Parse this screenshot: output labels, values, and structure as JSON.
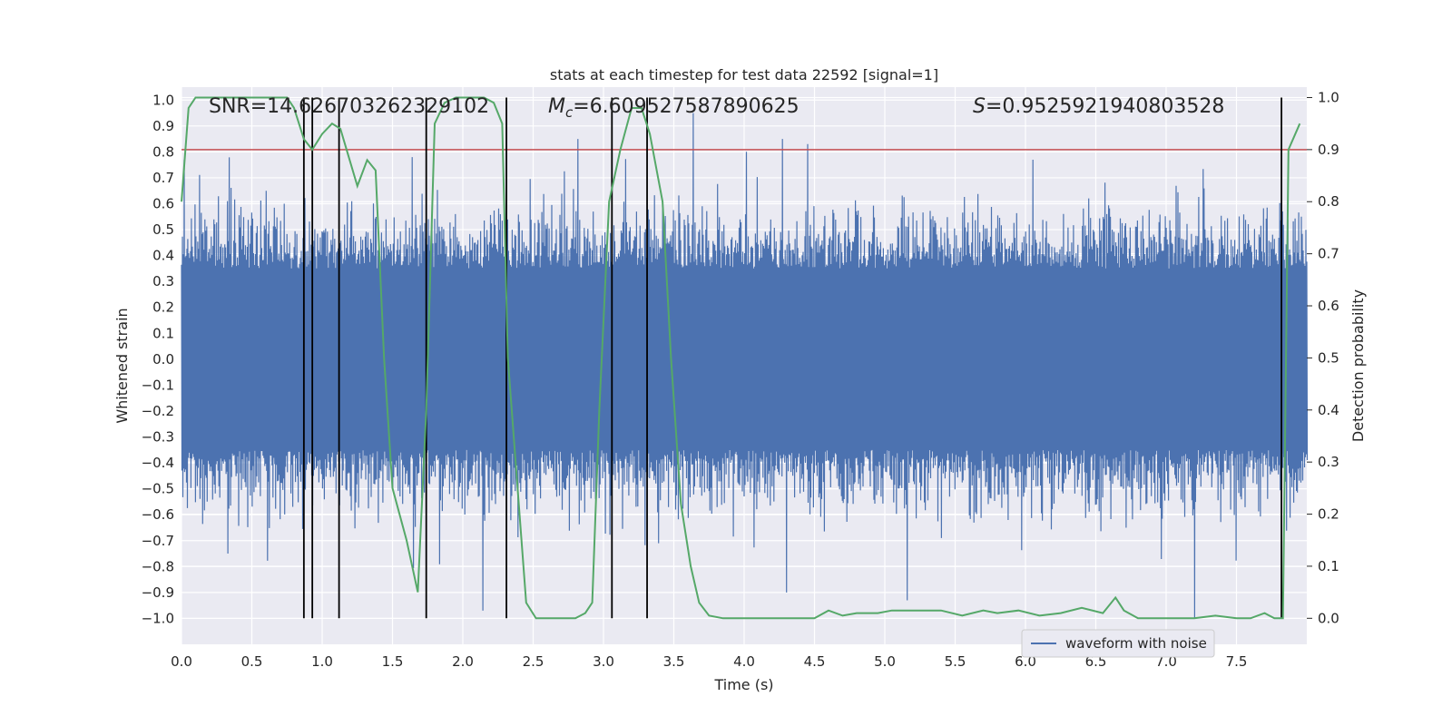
{
  "chart_data": {
    "type": "line",
    "title": "stats at each timestep for test data 22592 [signal=1]",
    "xlabel": "Time (s)",
    "ylabel_left": "Whitened strain",
    "ylabel_right": "Detection probability",
    "xlim": [
      0.0,
      8.0
    ],
    "ylim_left": [
      -1.1,
      1.05
    ],
    "ylim_right": [
      -0.05,
      1.02
    ],
    "x_ticks": [
      "0.0",
      "0.5",
      "1.0",
      "1.5",
      "2.0",
      "2.5",
      "3.0",
      "3.5",
      "4.0",
      "4.5",
      "5.0",
      "5.5",
      "6.0",
      "6.5",
      "7.0",
      "7.5"
    ],
    "x_tick_values": [
      0,
      0.5,
      1,
      1.5,
      2,
      2.5,
      3,
      3.5,
      4,
      4.5,
      5,
      5.5,
      6,
      6.5,
      7,
      7.5
    ],
    "y_left_ticks": [
      "1.0",
      "0.9",
      "0.8",
      "0.7",
      "0.6",
      "0.5",
      "0.4",
      "0.3",
      "0.2",
      "0.1",
      "0.0",
      "−0.1",
      "−0.2",
      "−0.3",
      "−0.4",
      "−0.5",
      "−0.6",
      "−0.7",
      "−0.8",
      "−0.9",
      "−1.0"
    ],
    "y_left_tick_values": [
      1.0,
      0.9,
      0.8,
      0.7,
      0.6,
      0.5,
      0.4,
      0.3,
      0.2,
      0.1,
      0.0,
      -0.1,
      -0.2,
      -0.3,
      -0.4,
      -0.5,
      -0.6,
      -0.7,
      -0.8,
      -0.9,
      -1.0
    ],
    "y_right_ticks": [
      "1.0",
      "0.9",
      "0.8",
      "0.7",
      "0.6",
      "0.5",
      "0.4",
      "0.3",
      "0.2",
      "0.1",
      "0.0"
    ],
    "y_right_tick_values": [
      1.0,
      0.9,
      0.8,
      0.7,
      0.6,
      0.5,
      0.4,
      0.3,
      0.2,
      0.1,
      0.0
    ],
    "annotations": {
      "snr": "SNR=14.626703262329102",
      "mc_prefix": "M",
      "mc_sub": "c",
      "mc_value": "=6.609527587890625",
      "s_prefix": "S",
      "s_value": "=0.9525921940803528"
    },
    "legend": {
      "placement": "lower-right",
      "entries": [
        "waveform with noise"
      ]
    },
    "threshold": {
      "axis": "right",
      "value": 0.9
    },
    "vlines": [
      0.87,
      0.93,
      1.12,
      1.74,
      2.31,
      3.06,
      3.31,
      7.82
    ],
    "waveform": {
      "name": "waveform with noise",
      "duration": 8.0,
      "typical_amplitude": 0.35,
      "spikes": [
        {
          "x": 0.02,
          "y": 0.77
        },
        {
          "x": 0.6,
          "y": 0.65
        },
        {
          "x": 0.73,
          "y": 0.6
        },
        {
          "x": 1.64,
          "y": 0.78
        },
        {
          "x": 2.82,
          "y": 0.85
        },
        {
          "x": 3.64,
          "y": 0.95
        },
        {
          "x": 4.27,
          "y": 0.85
        },
        {
          "x": 4.45,
          "y": 0.83
        },
        {
          "x": 4.3,
          "y": -0.9
        },
        {
          "x": 5.16,
          "y": -0.93
        },
        {
          "x": 7.2,
          "y": -1.0
        },
        {
          "x": 2.14,
          "y": -0.97
        },
        {
          "x": 0.33,
          "y": -0.75
        },
        {
          "x": 6.05,
          "y": 0.77
        }
      ]
    },
    "probability": {
      "name": "detection probability",
      "x": [
        0.0,
        0.05,
        0.1,
        0.2,
        0.3,
        0.4,
        0.5,
        0.6,
        0.7,
        0.75,
        0.8,
        0.87,
        0.93,
        1.0,
        1.07,
        1.13,
        1.25,
        1.32,
        1.38,
        1.44,
        1.5,
        1.6,
        1.68,
        1.74,
        1.8,
        1.87,
        1.95,
        2.05,
        2.15,
        2.22,
        2.28,
        2.32,
        2.45,
        2.52,
        2.6,
        2.7,
        2.8,
        2.87,
        2.92,
        2.97,
        3.04,
        3.12,
        3.2,
        3.27,
        3.33,
        3.42,
        3.48,
        3.55,
        3.62,
        3.68,
        3.75,
        3.85,
        4.0,
        4.2,
        4.4,
        4.5,
        4.6,
        4.7,
        4.8,
        4.95,
        5.05,
        5.2,
        5.4,
        5.55,
        5.7,
        5.8,
        5.95,
        6.1,
        6.25,
        6.4,
        6.55,
        6.64,
        6.7,
        6.8,
        7.0,
        7.2,
        7.35,
        7.5,
        7.6,
        7.7,
        7.77,
        7.83,
        7.87,
        7.95
      ],
      "y": [
        0.8,
        0.98,
        1.0,
        1.0,
        1.0,
        1.0,
        1.0,
        1.0,
        1.0,
        1.0,
        0.98,
        0.92,
        0.9,
        0.93,
        0.95,
        0.94,
        0.83,
        0.88,
        0.86,
        0.5,
        0.25,
        0.15,
        0.05,
        0.4,
        0.95,
        0.99,
        1.0,
        1.0,
        1.0,
        0.99,
        0.95,
        0.5,
        0.03,
        0.0,
        0.0,
        0.0,
        0.0,
        0.01,
        0.03,
        0.4,
        0.8,
        0.9,
        0.98,
        0.98,
        0.93,
        0.8,
        0.5,
        0.22,
        0.1,
        0.03,
        0.005,
        0.0,
        0.0,
        0.0,
        0.0,
        0.0,
        0.015,
        0.005,
        0.01,
        0.01,
        0.015,
        0.015,
        0.015,
        0.005,
        0.015,
        0.01,
        0.015,
        0.005,
        0.01,
        0.02,
        0.01,
        0.04,
        0.015,
        0.0,
        0.0,
        0.0,
        0.005,
        0.0,
        0.0,
        0.01,
        0.0,
        0.0,
        0.9,
        0.95
      ]
    },
    "grid": true,
    "colors": {
      "background": "#eaeaf2",
      "grid": "#ffffff",
      "waveform": "#4c72b0",
      "probability": "#55a868",
      "threshold": "#c44e52",
      "vlines": "#000000",
      "text": "#262626"
    }
  }
}
